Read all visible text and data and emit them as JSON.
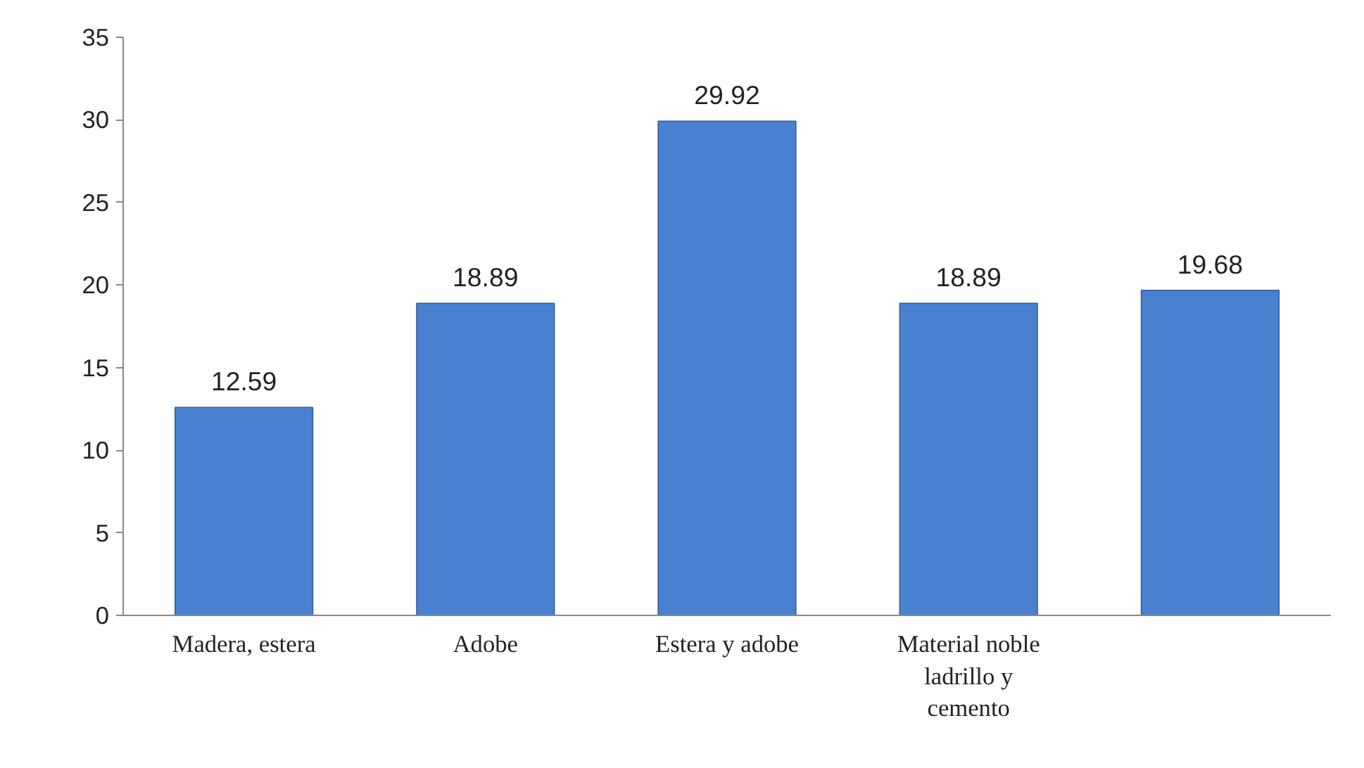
{
  "chart_data": {
    "type": "bar",
    "categories": [
      "Madera, estera",
      "Adobe",
      "Estera y adobe",
      "Material noble ladrillo y cemento",
      null
    ],
    "values": [
      12.59,
      18.89,
      29.92,
      18.89,
      19.68
    ],
    "color": "#4a80d0",
    "ylim": [
      0,
      35
    ],
    "yticks": [
      0,
      5,
      10,
      15,
      20,
      25,
      30,
      35
    ],
    "grid": false,
    "data_labels": true
  }
}
